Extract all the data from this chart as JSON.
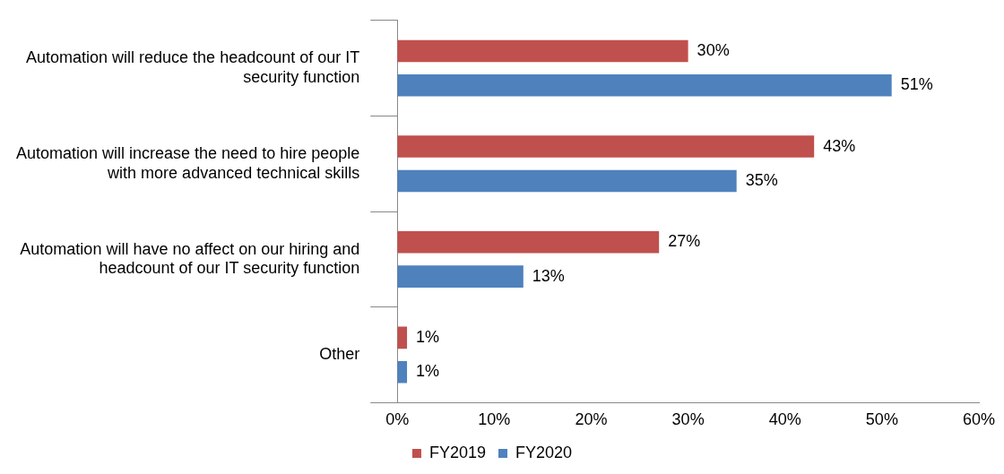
{
  "chart_data": {
    "type": "bar",
    "orientation": "horizontal",
    "categories": [
      "Automation will reduce the headcount of our IT security function",
      "Automation will increase the need to hire people with more advanced technical skills",
      "Automation will have no affect on our hiring and headcount of our IT security function",
      "Other"
    ],
    "series": [
      {
        "name": "FY2019",
        "color": "#c0504d",
        "values": [
          30,
          43,
          27,
          1
        ],
        "value_labels": [
          "30%",
          "43%",
          "27%",
          "1%"
        ]
      },
      {
        "name": "FY2020",
        "color": "#4f81bd",
        "values": [
          51,
          35,
          13,
          1
        ],
        "value_labels": [
          "51%",
          "35%",
          "13%",
          "1%"
        ]
      }
    ],
    "xlim": [
      0,
      60
    ],
    "xticks": [
      {
        "value": 0,
        "label": "0%"
      },
      {
        "value": 10,
        "label": "10%"
      },
      {
        "value": 20,
        "label": "20%"
      },
      {
        "value": 30,
        "label": "30%"
      },
      {
        "value": 40,
        "label": "40%"
      },
      {
        "value": 50,
        "label": "50%"
      },
      {
        "value": 60,
        "label": "60%"
      }
    ],
    "grid": false,
    "legend": "bottom"
  }
}
